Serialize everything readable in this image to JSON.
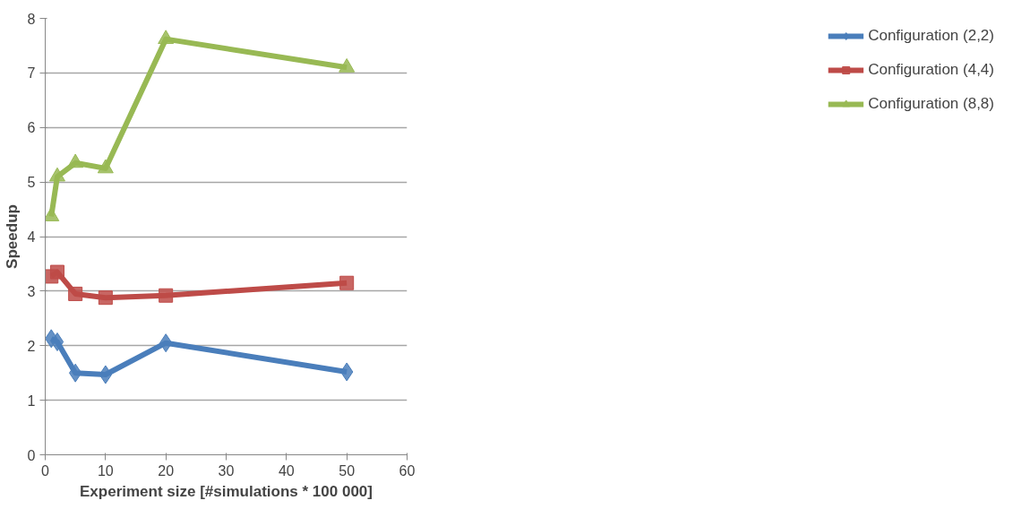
{
  "chart_data": {
    "type": "line",
    "xlabel": "Experiment size [#simulations * 100 000]",
    "ylabel": "Speedup",
    "x": [
      1,
      2,
      5,
      10,
      20,
      50
    ],
    "series": [
      {
        "name": "Configuration (2,2)",
        "color": "#4a7ebb",
        "marker": "diamond",
        "values": [
          2.13,
          2.07,
          1.5,
          1.47,
          2.05,
          1.52
        ]
      },
      {
        "name": "Configuration (4,4)",
        "color": "#be4b48",
        "marker": "square",
        "values": [
          3.27,
          3.35,
          2.95,
          2.88,
          2.92,
          3.15
        ]
      },
      {
        "name": "Configuration (8,8)",
        "color": "#98b954",
        "marker": "triangle",
        "values": [
          4.37,
          5.1,
          5.35,
          5.25,
          7.62,
          7.1
        ]
      }
    ],
    "xlim": [
      0,
      60
    ],
    "xticks": [
      0,
      10,
      20,
      30,
      40,
      50,
      60
    ],
    "ylim": [
      0,
      8
    ],
    "yticks": [
      0,
      1,
      2,
      3,
      4,
      5,
      6,
      7,
      8
    ],
    "grid": "y",
    "legend": "right",
    "line_style": "solid"
  }
}
